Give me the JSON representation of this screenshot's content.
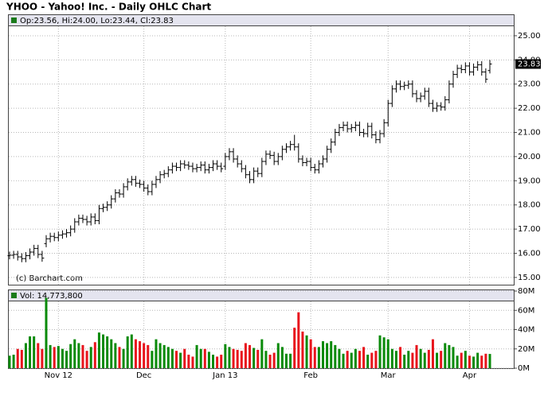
{
  "chart_data": {
    "type": "ohlc",
    "title": "YHOO - Yahoo! Inc. - Daily OHLC Chart",
    "ohlc_label": "Op:23.56, Hi:24.00, Lo:23.44, Cl:23.83",
    "watermark": "(c) Barchart.com",
    "color": "#000000",
    "legend_color": "#1a7a1a",
    "grid": true,
    "categories": [
      null,
      null,
      null,
      null,
      null,
      null,
      null,
      null,
      null,
      null,
      null,
      null,
      "Nov 12",
      null,
      null,
      null,
      null,
      null,
      null,
      null,
      null,
      null,
      null,
      null,
      null,
      null,
      null,
      null,
      null,
      null,
      null,
      null,
      null,
      "Dec",
      null,
      null,
      null,
      null,
      null,
      null,
      null,
      null,
      null,
      null,
      null,
      null,
      null,
      null,
      null,
      null,
      null,
      null,
      null,
      "Jan 13",
      null,
      null,
      null,
      null,
      null,
      null,
      null,
      null,
      null,
      null,
      null,
      null,
      null,
      null,
      null,
      null,
      null,
      null,
      null,
      null,
      "Feb",
      null,
      null,
      null,
      null,
      null,
      null,
      null,
      null,
      null,
      null,
      null,
      null,
      null,
      null,
      null,
      null,
      null,
      null,
      "Mar",
      null,
      null,
      null,
      null,
      null,
      null,
      null,
      null,
      null,
      null,
      null,
      null,
      null,
      null,
      null,
      null,
      null,
      null,
      null,
      "Apr",
      null,
      null,
      null,
      null,
      null
    ],
    "open": [
      15.9,
      15.92,
      15.95,
      15.85,
      15.78,
      15.9,
      16.05,
      16.2,
      15.95,
      16.4,
      16.6,
      16.7,
      16.65,
      16.75,
      16.8,
      16.85,
      17.0,
      17.3,
      17.45,
      17.4,
      17.3,
      17.5,
      17.35,
      17.85,
      17.9,
      18.0,
      18.25,
      18.5,
      18.45,
      18.75,
      18.95,
      19.05,
      18.9,
      18.85,
      18.7,
      18.55,
      18.85,
      19.05,
      19.25,
      19.3,
      19.45,
      19.6,
      19.55,
      19.7,
      19.65,
      19.6,
      19.5,
      19.55,
      19.65,
      19.45,
      19.55,
      19.7,
      19.6,
      19.6,
      20.0,
      20.2,
      19.9,
      19.7,
      19.5,
      19.25,
      19.05,
      19.4,
      19.3,
      19.8,
      20.1,
      20.05,
      19.8,
      20.0,
      20.3,
      20.4,
      20.5,
      20.4,
      19.9,
      19.75,
      19.8,
      19.55,
      19.45,
      19.7,
      19.9,
      20.3,
      20.6,
      21.0,
      21.2,
      21.3,
      21.15,
      21.2,
      21.3,
      21.0,
      20.95,
      21.25,
      20.9,
      20.7,
      20.95,
      21.4,
      22.2,
      22.8,
      23.0,
      22.9,
      22.95,
      23.0,
      22.6,
      22.4,
      22.5,
      22.7,
      22.2,
      22.0,
      22.1,
      22.05,
      22.35,
      23.0,
      23.4,
      23.65,
      23.6,
      23.75,
      23.5,
      23.7,
      23.8,
      23.5,
      23.56
    ],
    "high": [
      16.07,
      16.1,
      16.1,
      16.0,
      16.05,
      16.2,
      16.35,
      16.35,
      16.1,
      16.75,
      16.85,
      16.85,
      16.9,
      16.95,
      17.0,
      17.15,
      17.45,
      17.6,
      17.6,
      17.55,
      17.65,
      17.65,
      18.0,
      18.05,
      18.15,
      18.4,
      18.65,
      18.65,
      18.9,
      19.1,
      19.2,
      19.2,
      19.05,
      19.0,
      18.85,
      19.0,
      19.2,
      19.4,
      19.45,
      19.6,
      19.75,
      19.75,
      19.85,
      19.85,
      19.8,
      19.75,
      19.7,
      19.8,
      19.8,
      19.7,
      19.85,
      19.85,
      19.75,
      20.15,
      20.35,
      20.35,
      20.05,
      19.85,
      19.65,
      19.4,
      19.55,
      19.55,
      19.95,
      20.25,
      20.25,
      20.2,
      20.15,
      20.45,
      20.55,
      20.65,
      20.9,
      20.55,
      20.05,
      19.95,
      19.95,
      19.7,
      19.85,
      20.05,
      20.45,
      20.75,
      21.15,
      21.35,
      21.45,
      21.45,
      21.35,
      21.45,
      21.45,
      21.15,
      21.4,
      21.4,
      21.05,
      21.1,
      21.55,
      22.35,
      22.95,
      23.15,
      23.15,
      23.1,
      23.15,
      23.15,
      22.75,
      22.65,
      22.85,
      22.85,
      22.35,
      22.25,
      22.25,
      22.5,
      23.15,
      23.55,
      23.8,
      23.8,
      23.9,
      23.9,
      23.85,
      23.95,
      23.95,
      23.65,
      24.0
    ],
    "low": [
      15.75,
      15.77,
      15.7,
      15.63,
      15.63,
      15.75,
      15.9,
      15.8,
      15.65,
      16.25,
      16.45,
      16.5,
      16.5,
      16.6,
      16.65,
      16.7,
      16.85,
      17.15,
      17.25,
      17.15,
      17.15,
      17.2,
      17.2,
      17.7,
      17.75,
      17.85,
      18.1,
      18.3,
      18.3,
      18.6,
      18.8,
      18.75,
      18.7,
      18.55,
      18.4,
      18.4,
      18.7,
      18.9,
      19.1,
      19.15,
      19.3,
      19.4,
      19.4,
      19.5,
      19.45,
      19.35,
      19.35,
      19.4,
      19.3,
      19.3,
      19.4,
      19.45,
      19.35,
      19.45,
      19.85,
      19.75,
      19.55,
      19.35,
      19.1,
      18.9,
      18.9,
      19.15,
      19.15,
      19.65,
      19.9,
      19.65,
      19.65,
      19.85,
      20.15,
      20.25,
      20.25,
      19.75,
      19.6,
      19.6,
      19.4,
      19.3,
      19.3,
      19.55,
      19.75,
      20.15,
      20.45,
      20.85,
      21.05,
      21.0,
      21.0,
      21.05,
      20.85,
      20.8,
      20.8,
      20.75,
      20.55,
      20.55,
      20.8,
      21.25,
      22.05,
      22.65,
      22.75,
      22.75,
      22.8,
      22.45,
      22.25,
      22.25,
      22.35,
      22.05,
      21.85,
      21.85,
      21.9,
      21.9,
      22.2,
      22.85,
      23.25,
      23.45,
      23.45,
      23.35,
      23.35,
      23.55,
      23.35,
      23.05,
      23.44
    ],
    "close": [
      15.92,
      15.95,
      15.85,
      15.78,
      15.9,
      16.05,
      16.2,
      15.95,
      15.8,
      16.6,
      16.7,
      16.65,
      16.75,
      16.8,
      16.85,
      17.0,
      17.3,
      17.45,
      17.4,
      17.3,
      17.5,
      17.35,
      17.85,
      17.9,
      18.0,
      18.25,
      18.5,
      18.45,
      18.75,
      18.95,
      19.05,
      18.9,
      18.85,
      18.7,
      18.55,
      18.85,
      19.05,
      19.25,
      19.3,
      19.45,
      19.6,
      19.55,
      19.7,
      19.65,
      19.6,
      19.5,
      19.55,
      19.65,
      19.45,
      19.55,
      19.7,
      19.6,
      19.5,
      20.0,
      20.2,
      19.9,
      19.7,
      19.5,
      19.25,
      19.05,
      19.4,
      19.3,
      19.8,
      20.1,
      20.05,
      19.8,
      20.0,
      20.3,
      20.4,
      20.5,
      20.4,
      19.9,
      19.75,
      19.8,
      19.55,
      19.45,
      19.7,
      19.9,
      20.3,
      20.6,
      21.0,
      21.2,
      21.3,
      21.15,
      21.2,
      21.3,
      21.0,
      20.95,
      21.25,
      20.9,
      20.7,
      20.95,
      21.4,
      22.2,
      22.8,
      23.0,
      22.9,
      22.95,
      23.0,
      22.6,
      22.4,
      22.5,
      22.7,
      22.2,
      22.0,
      22.1,
      22.05,
      22.35,
      23.0,
      23.4,
      23.65,
      23.6,
      23.75,
      23.5,
      23.7,
      23.8,
      23.5,
      23.2,
      23.83
    ],
    "ylim": [
      14.7,
      25.36
    ],
    "yticks": [
      {
        "value": 15,
        "label": "15.00"
      },
      {
        "value": 16,
        "label": "16.00"
      },
      {
        "value": 17,
        "label": "17.00"
      },
      {
        "value": 18,
        "label": "18.00"
      },
      {
        "value": 19,
        "label": "19.00"
      },
      {
        "value": 20,
        "label": "20.00"
      },
      {
        "value": 21,
        "label": "21.00"
      },
      {
        "value": 22,
        "label": "22.00"
      },
      {
        "value": 23,
        "label": "23.00"
      },
      {
        "value": 24,
        "label": "24.00"
      },
      {
        "value": 25,
        "label": "25.00"
      }
    ],
    "volume": {
      "label": "Vol: 14,773,800",
      "up_color": "#0a8a0a",
      "down_color": "#e8141c",
      "values": [
        13,
        14,
        20,
        19,
        26,
        33,
        33,
        26,
        20,
        73,
        24,
        22,
        23,
        20,
        18,
        25,
        30,
        26,
        24,
        18,
        22,
        27,
        37,
        35,
        33,
        30,
        26,
        22,
        20,
        33,
        35,
        30,
        28,
        26,
        24,
        18,
        30,
        26,
        24,
        22,
        20,
        18,
        16,
        20,
        14,
        12,
        24,
        20,
        20,
        17,
        14,
        12,
        14,
        25,
        22,
        20,
        19,
        18,
        26,
        24,
        21,
        19,
        30,
        18,
        14,
        16,
        26,
        22,
        15,
        15,
        42,
        58,
        38,
        34,
        30,
        22,
        22,
        28,
        26,
        28,
        24,
        20,
        15,
        18,
        16,
        20,
        18,
        22,
        14,
        16,
        18,
        34,
        32,
        30,
        20,
        18,
        22,
        14,
        18,
        16,
        24,
        20,
        16,
        19,
        30,
        16,
        18,
        26,
        24,
        22,
        13,
        16,
        18,
        13,
        12,
        16,
        13,
        15,
        14.7738
      ],
      "ylim": [
        0,
        80
      ],
      "yticks": [
        {
          "value": 0,
          "label": "0M"
        },
        {
          "value": 20,
          "label": "20M"
        },
        {
          "value": 40,
          "label": "40M"
        },
        {
          "value": 60,
          "label": "60M"
        },
        {
          "value": 80,
          "label": "80M"
        }
      ]
    }
  }
}
